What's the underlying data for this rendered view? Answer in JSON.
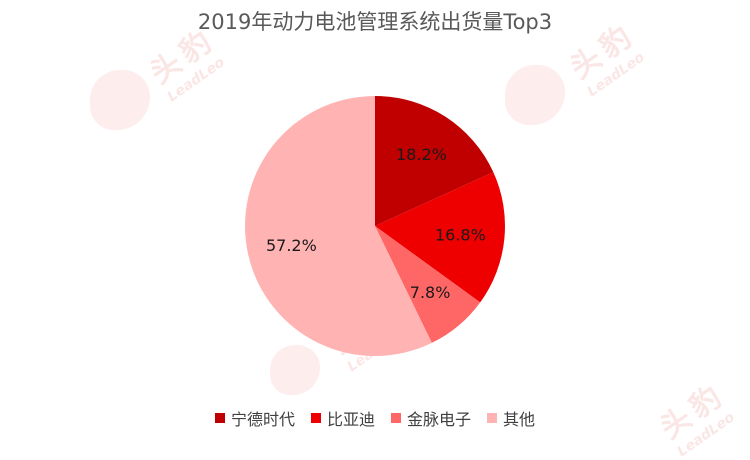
{
  "chart_data": {
    "type": "pie",
    "title": "2019年动力电池管理系统出货量Top3",
    "categories": [
      "宁德时代",
      "比亚迪",
      "金脉电子",
      "其他"
    ],
    "values": [
      18.2,
      16.8,
      7.8,
      57.2
    ],
    "labels": [
      "18.2%",
      "16.8%",
      "7.8%",
      "57.2%"
    ],
    "colors": [
      "#c00000",
      "#ee0000",
      "#ff6666",
      "#ffb3b3"
    ],
    "legend_position": "bottom"
  },
  "watermark": {
    "text": "头豹",
    "subtext": "LeadLeo"
  }
}
